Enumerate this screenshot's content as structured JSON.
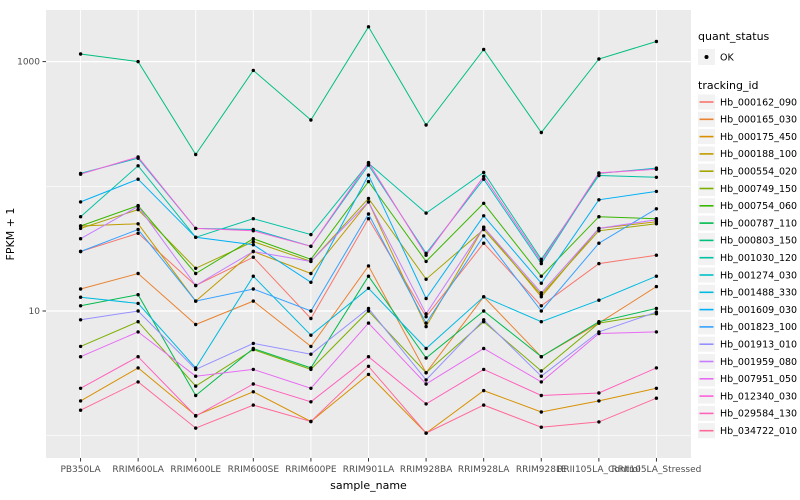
{
  "chart_data": {
    "type": "line",
    "title": "",
    "xlabel": "sample_name",
    "ylabel": "FPKM + 1",
    "y_scale": "log10",
    "y_major_ticks": [
      10,
      1000
    ],
    "y_tick_labels": [
      "10",
      "1000"
    ],
    "y_minor_gridlines": [
      1,
      100
    ],
    "ylim": [
      0.66,
      2590
    ],
    "grid": "white major/minor gridlines on grey panel",
    "legend_position": "right",
    "panel_background": "#EBEBEB",
    "point_color": "#000000",
    "axis_text_color": "#4D4D4D",
    "legend_key_fill": "#F2F2F2",
    "legend_quant": {
      "title": "quant_status",
      "items": [
        {
          "label": "OK",
          "symbol": "point"
        }
      ]
    },
    "legend_tracking": {
      "title": "tracking_id"
    },
    "categories": [
      "PB350LA",
      "RRIM600LA",
      "RRIM600LE",
      "RRIM600SE",
      "RRIM600PE",
      "RRIM901LA",
      "RRIM928BA",
      "RRIM928LA",
      "RRIM928LE",
      "RRII105LA_Control",
      "RRII105LA_Stressed"
    ],
    "series": [
      {
        "id": "Hb_000162_090",
        "color": "#F8766D",
        "values": [
          30,
          42,
          16,
          27,
          8.7,
          55,
          9,
          35,
          11,
          24,
          28
        ]
      },
      {
        "id": "Hb_000165_030",
        "color": "#EA8331",
        "values": [
          15,
          20,
          7.8,
          12,
          5.2,
          23,
          3.2,
          13,
          4.3,
          8,
          15.7
        ]
      },
      {
        "id": "Hb_000175_450",
        "color": "#D89000",
        "values": [
          1.9,
          3.5,
          1.45,
          2.25,
          1.3,
          3.1,
          1.05,
          2.3,
          1.55,
          1.9,
          2.4
        ]
      },
      {
        "id": "Hb_000188_100",
        "color": "#C09B00",
        "values": [
          48,
          50,
          12,
          30,
          20,
          75,
          7.5,
          47,
          13,
          46,
          52
        ]
      },
      {
        "id": "Hb_000554_020",
        "color": "#A3A500",
        "values": [
          46,
          65,
          22,
          36,
          25,
          80,
          18,
          45,
          13.5,
          44,
          50
        ]
      },
      {
        "id": "Hb_000749_150",
        "color": "#7CAE00",
        "values": [
          5.2,
          8.2,
          2.5,
          4.9,
          3.4,
          10,
          3.2,
          8.2,
          3.3,
          8,
          9.5
        ]
      },
      {
        "id": "Hb_000754_060",
        "color": "#39B600",
        "values": [
          48,
          70,
          20,
          38,
          26,
          109,
          25,
          73,
          19,
          57,
          55
        ]
      },
      {
        "id": "Hb_000787_110",
        "color": "#00BB4E",
        "values": [
          11,
          13.5,
          2.1,
          5,
          3.5,
          19,
          4.2,
          10,
          4.3,
          8.2,
          10.5
        ]
      },
      {
        "id": "Hb_000803_150",
        "color": "#00BF7D",
        "values": [
          1150,
          1000,
          180,
          850,
          340,
          1900,
          310,
          1250,
          270,
          1050,
          1450
        ]
      },
      {
        "id": "Hb_001030_120",
        "color": "#00C1A3",
        "values": [
          57,
          146,
          39,
          55,
          41,
          153,
          61,
          129,
          26,
          122,
          118
        ]
      },
      {
        "id": "Hb_001274_030",
        "color": "#00BFC4",
        "values": [
          127,
          168,
          46,
          45,
          33,
          148,
          29,
          114,
          24,
          127,
          140
        ]
      },
      {
        "id": "Hb_001488_330",
        "color": "#00BAE0",
        "values": [
          12.9,
          11.5,
          3.5,
          19,
          6.4,
          15.2,
          5,
          13,
          8.2,
          12.2,
          19
        ]
      },
      {
        "id": "Hb_001609_030",
        "color": "#00B0F6",
        "values": [
          75,
          114,
          39,
          34,
          17,
          123,
          12.6,
          58,
          16.7,
          78,
          91
        ]
      },
      {
        "id": "Hb_001823_100",
        "color": "#35A2FF",
        "values": [
          30,
          45,
          12,
          15,
          10,
          60,
          8,
          40,
          10,
          35,
          66
        ]
      },
      {
        "id": "Hb_001913_010",
        "color": "#9590FF",
        "values": [
          8.5,
          10,
          3.4,
          5.5,
          4.5,
          10.5,
          2.8,
          8.5,
          3,
          6.8,
          9.8
        ]
      },
      {
        "id": "Hb_001959_080",
        "color": "#C77CFF",
        "values": [
          38,
          69,
          16,
          30,
          25,
          75,
          9.5,
          47,
          14,
          46,
          54
        ]
      },
      {
        "id": "Hb_007951_050",
        "color": "#E76BF3",
        "values": [
          4.3,
          6.8,
          3,
          3.4,
          2.4,
          8,
          2.6,
          5,
          2.7,
          6.6,
          6.8
        ]
      },
      {
        "id": "Hb_012340_030",
        "color": "#FA62DB",
        "values": [
          125,
          172,
          46,
          44,
          33,
          155,
          28,
          120,
          25,
          128,
          137
        ]
      },
      {
        "id": "Hb_029584_130",
        "color": "#FF62BC",
        "values": [
          2.4,
          4.3,
          1.44,
          2.6,
          1.87,
          4.3,
          1.8,
          3.4,
          2.1,
          2.2,
          3.5
        ]
      },
      {
        "id": "Hb_034722_010",
        "color": "#FF6A98",
        "values": [
          1.6,
          2.7,
          1.15,
          1.76,
          1.3,
          3.6,
          1.05,
          1.76,
          1.17,
          1.29,
          2
        ]
      }
    ]
  }
}
